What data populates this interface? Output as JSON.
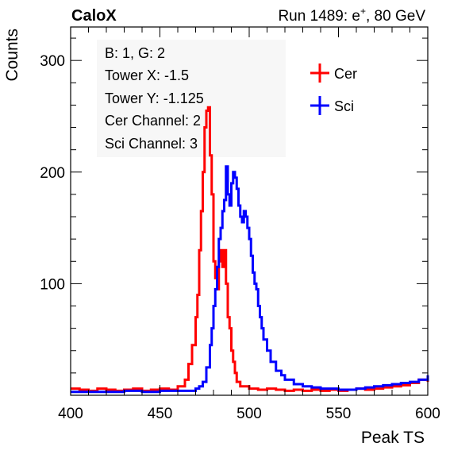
{
  "header": {
    "experiment": "CaloX",
    "run_prefix": "Run 1489: e",
    "run_sup": "+",
    "run_suffix": ", 80 GeV"
  },
  "info_box": {
    "lines": [
      "B: 1, G: 2",
      "Tower X: -1.5",
      "Tower Y: -1.125",
      "Cer Channel: 2",
      "Sci Channel: 3"
    ]
  },
  "chart_data": {
    "type": "line",
    "title": "",
    "xlabel": "Peak TS",
    "ylabel": "Counts",
    "xlim": [
      400,
      600
    ],
    "ylim": [
      0,
      330
    ],
    "x_ticks": [
      400,
      450,
      500,
      550,
      600
    ],
    "y_ticks": [
      100,
      200,
      300
    ],
    "grid": false,
    "legend_position": "top-right",
    "series": [
      {
        "name": "Cer",
        "color": "#ff0000",
        "points": [
          [
            400,
            6
          ],
          [
            405,
            5
          ],
          [
            410,
            4
          ],
          [
            415,
            6
          ],
          [
            420,
            5
          ],
          [
            425,
            4
          ],
          [
            430,
            5
          ],
          [
            435,
            6
          ],
          [
            440,
            4
          ],
          [
            445,
            5
          ],
          [
            450,
            6
          ],
          [
            455,
            5
          ],
          [
            460,
            8
          ],
          [
            464,
            14
          ],
          [
            466,
            28
          ],
          [
            468,
            45
          ],
          [
            470,
            70
          ],
          [
            471,
            90
          ],
          [
            472,
            130
          ],
          [
            473,
            165
          ],
          [
            474,
            200
          ],
          [
            475,
            240
          ],
          [
            476,
            255
          ],
          [
            477,
            258
          ],
          [
            478,
            215
          ],
          [
            479,
            180
          ],
          [
            480,
            120
          ],
          [
            481,
            105
          ],
          [
            482,
            95
          ],
          [
            483,
            120
          ],
          [
            484,
            130
          ],
          [
            485,
            115
          ],
          [
            486,
            130
          ],
          [
            487,
            100
          ],
          [
            488,
            70
          ],
          [
            489,
            60
          ],
          [
            490,
            40
          ],
          [
            491,
            30
          ],
          [
            492,
            20
          ],
          [
            493,
            12
          ],
          [
            495,
            8
          ],
          [
            500,
            6
          ],
          [
            505,
            5
          ],
          [
            510,
            6
          ],
          [
            515,
            5
          ],
          [
            520,
            4
          ],
          [
            525,
            5
          ],
          [
            530,
            4
          ],
          [
            535,
            5
          ],
          [
            540,
            4
          ],
          [
            545,
            5
          ],
          [
            550,
            4
          ],
          [
            555,
            5
          ],
          [
            560,
            6
          ],
          [
            565,
            5
          ],
          [
            570,
            6
          ],
          [
            575,
            7
          ],
          [
            580,
            8
          ],
          [
            585,
            9
          ],
          [
            590,
            11
          ],
          [
            595,
            14
          ],
          [
            600,
            12
          ]
        ]
      },
      {
        "name": "Sci",
        "color": "#0000ff",
        "points": [
          [
            400,
            3
          ],
          [
            410,
            3
          ],
          [
            420,
            3
          ],
          [
            430,
            4
          ],
          [
            440,
            3
          ],
          [
            450,
            4
          ],
          [
            460,
            4
          ],
          [
            465,
            4
          ],
          [
            470,
            6
          ],
          [
            472,
            8
          ],
          [
            474,
            12
          ],
          [
            476,
            25
          ],
          [
            478,
            45
          ],
          [
            479,
            60
          ],
          [
            480,
            80
          ],
          [
            481,
            95
          ],
          [
            482,
            115
          ],
          [
            483,
            140
          ],
          [
            484,
            150
          ],
          [
            485,
            165
          ],
          [
            486,
            175
          ],
          [
            487,
            205
          ],
          [
            488,
            180
          ],
          [
            489,
            170
          ],
          [
            490,
            190
          ],
          [
            491,
            200
          ],
          [
            492,
            195
          ],
          [
            493,
            185
          ],
          [
            494,
            170
          ],
          [
            495,
            160
          ],
          [
            496,
            155
          ],
          [
            497,
            165
          ],
          [
            498,
            160
          ],
          [
            499,
            150
          ],
          [
            500,
            140
          ],
          [
            501,
            125
          ],
          [
            502,
            110
          ],
          [
            503,
            100
          ],
          [
            504,
            95
          ],
          [
            505,
            80
          ],
          [
            506,
            70
          ],
          [
            507,
            60
          ],
          [
            508,
            50
          ],
          [
            510,
            40
          ],
          [
            512,
            30
          ],
          [
            515,
            22
          ],
          [
            518,
            18
          ],
          [
            520,
            14
          ],
          [
            525,
            10
          ],
          [
            530,
            8
          ],
          [
            535,
            7
          ],
          [
            540,
            6
          ],
          [
            545,
            6
          ],
          [
            550,
            5
          ],
          [
            555,
            5
          ],
          [
            560,
            6
          ],
          [
            565,
            7
          ],
          [
            570,
            8
          ],
          [
            575,
            9
          ],
          [
            580,
            10
          ],
          [
            585,
            11
          ],
          [
            590,
            12
          ],
          [
            595,
            14
          ],
          [
            600,
            18
          ]
        ]
      }
    ]
  }
}
